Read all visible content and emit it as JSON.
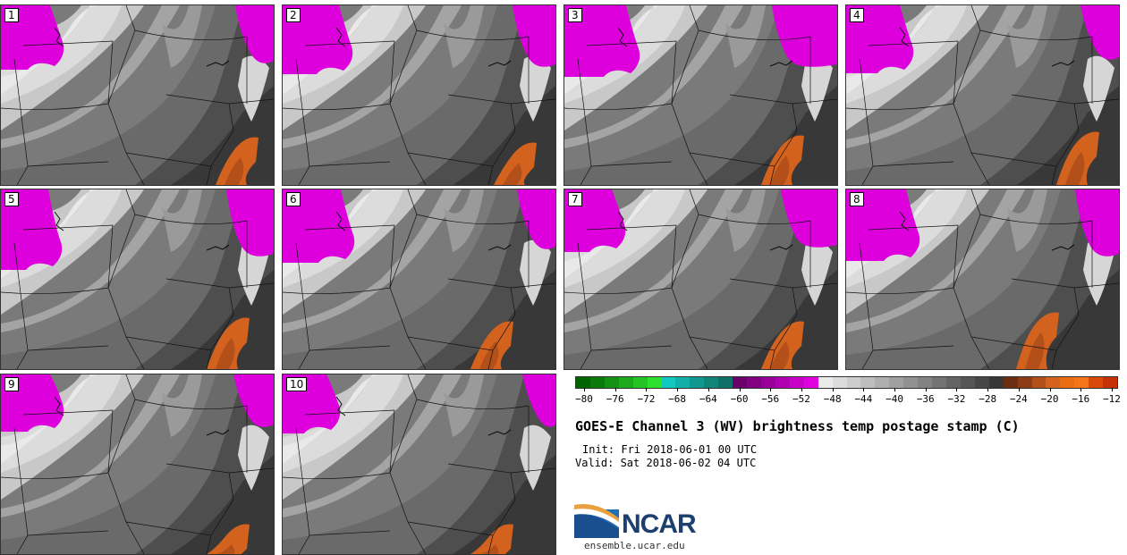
{
  "panels": [
    {
      "label": "1"
    },
    {
      "label": "2"
    },
    {
      "label": "3"
    },
    {
      "label": "4"
    },
    {
      "label": "5"
    },
    {
      "label": "6"
    },
    {
      "label": "7"
    },
    {
      "label": "8"
    },
    {
      "label": "9"
    },
    {
      "label": "10"
    }
  ],
  "colorbar": {
    "colors": [
      "#006400",
      "#0b7a0b",
      "#139113",
      "#1caa1c",
      "#23c423",
      "#2ee02e",
      "#10c8c0",
      "#10b0a8",
      "#109890",
      "#108478",
      "#0e7068",
      "#6a006a",
      "#820082",
      "#990099",
      "#b000b0",
      "#c800c8",
      "#e000e0",
      "#ebebeb",
      "#dcdcdc",
      "#cdcdcd",
      "#bebebe",
      "#afafaf",
      "#a0a0a0",
      "#919191",
      "#828282",
      "#737373",
      "#646464",
      "#555555",
      "#464646",
      "#373737",
      "#6b2e12",
      "#8c3c16",
      "#b3501a",
      "#d2621e",
      "#ea6c10",
      "#f57418",
      "#d94a0a",
      "#c83008"
    ],
    "tick_labels": [
      "−80",
      "−76",
      "−72",
      "−68",
      "−64",
      "−60",
      "−56",
      "−52",
      "−48",
      "−44",
      "−40",
      "−36",
      "−32",
      "−28",
      "−24",
      "−20",
      "−16",
      "−12"
    ]
  },
  "title": "GOES-E Channel 3 (WV) brightness temp postage stamp (C)",
  "init": "Init: Fri 2018-06-01 00 UTC",
  "valid": "Valid: Sat 2018-06-02 04 UTC",
  "logo_text": "NCAR",
  "site": "ensemble.ucar.edu"
}
